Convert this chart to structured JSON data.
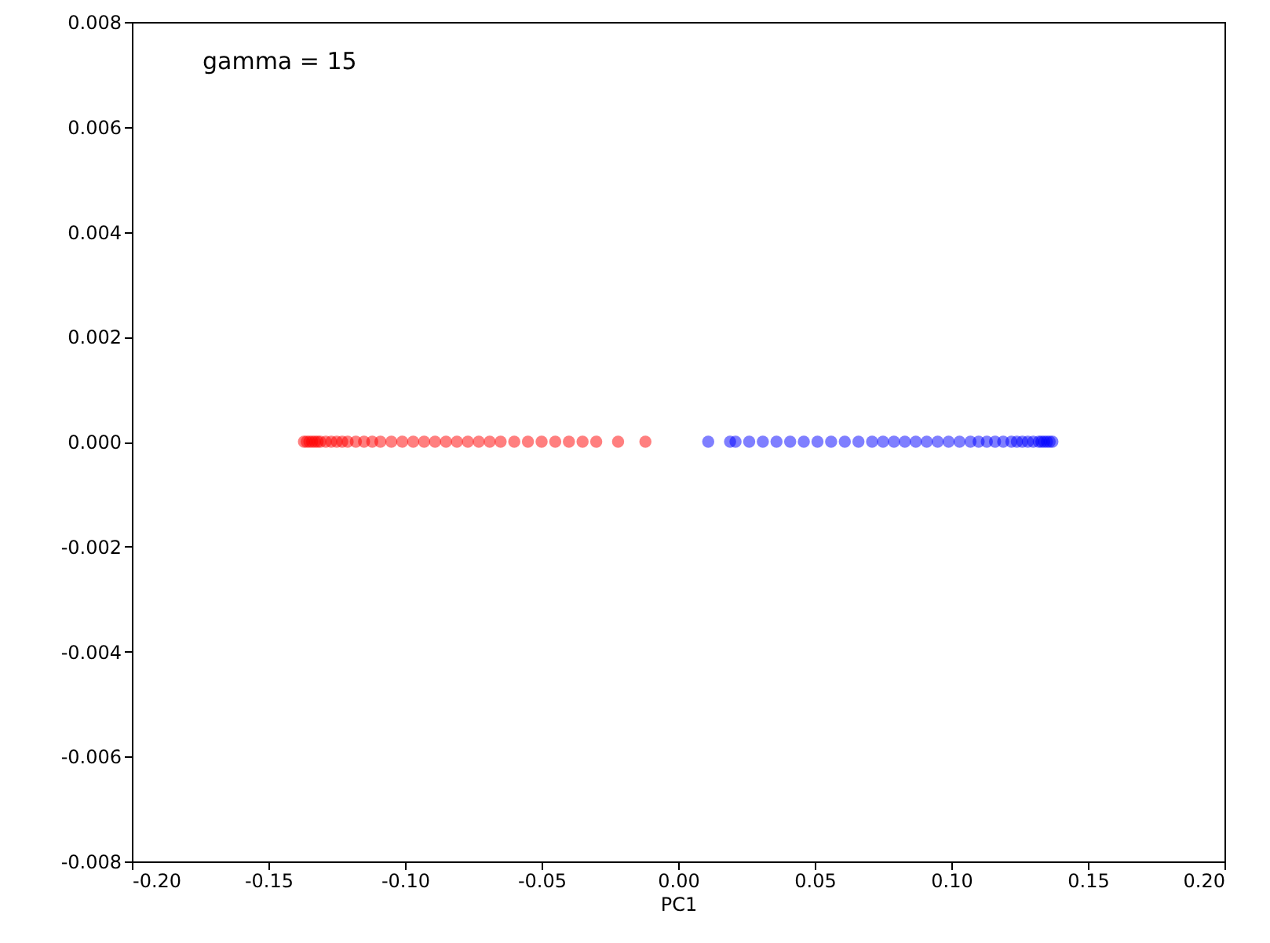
{
  "chart_data": {
    "type": "scatter",
    "xlabel": "PC1",
    "annotations": [
      "gamma = 15"
    ],
    "marker": "circle",
    "grid": false,
    "xlim": [
      -0.2,
      0.2
    ],
    "ylim": [
      -0.008,
      0.008
    ],
    "xticks": [
      {
        "value": -0.2,
        "label": "-0.20"
      },
      {
        "value": -0.15,
        "label": "-0.15"
      },
      {
        "value": -0.1,
        "label": "-0.10"
      },
      {
        "value": -0.05,
        "label": "-0.05"
      },
      {
        "value": 0,
        "label": "0.00"
      },
      {
        "value": 0.05,
        "label": "0.05"
      },
      {
        "value": 0.1,
        "label": "0.10"
      },
      {
        "value": 0.15,
        "label": "0.15"
      },
      {
        "value": 0.2,
        "label": "0.20"
      }
    ],
    "yticks": [
      {
        "value": -0.008,
        "label": "-0.008"
      },
      {
        "value": -0.006,
        "label": "-0.006"
      },
      {
        "value": -0.004,
        "label": "-0.004"
      },
      {
        "value": -0.002,
        "label": "-0.002"
      },
      {
        "value": 0,
        "label": "0.000"
      },
      {
        "value": 0.002,
        "label": "0.002"
      },
      {
        "value": 0.004,
        "label": "0.004"
      },
      {
        "value": 0.006,
        "label": "0.006"
      },
      {
        "value": 0.008,
        "label": "0.008"
      }
    ],
    "series": [
      {
        "color": "#ff0000",
        "x": [
          -0.137,
          -0.136,
          -0.135,
          -0.134,
          -0.133,
          -0.132,
          -0.131,
          -0.129,
          -0.127,
          -0.125,
          -0.123,
          -0.121,
          -0.118,
          -0.115,
          -0.112,
          -0.109,
          -0.105,
          -0.101,
          -0.097,
          -0.093,
          -0.089,
          -0.085,
          -0.081,
          -0.077,
          -0.073,
          -0.069,
          -0.065,
          -0.06,
          -0.055,
          -0.05,
          -0.045,
          -0.04,
          -0.035,
          -0.03,
          -0.022,
          -0.012
        ],
        "values": [
          0,
          0,
          0,
          0,
          0,
          0,
          0,
          0,
          0,
          0,
          0,
          0,
          0,
          0,
          0,
          0,
          0,
          0,
          0,
          0,
          0,
          0,
          0,
          0,
          0,
          0,
          0,
          0,
          0,
          0,
          0,
          0,
          0,
          0,
          0,
          0
        ]
      },
      {
        "color": "#0000ff",
        "x": [
          0.011,
          0.019,
          0.021,
          0.026,
          0.031,
          0.036,
          0.041,
          0.046,
          0.051,
          0.056,
          0.061,
          0.066,
          0.071,
          0.075,
          0.079,
          0.083,
          0.087,
          0.091,
          0.095,
          0.099,
          0.103,
          0.107,
          0.11,
          0.113,
          0.116,
          0.119,
          0.122,
          0.124,
          0.126,
          0.128,
          0.13,
          0.132,
          0.133,
          0.134,
          0.135,
          0.136,
          0.137
        ],
        "values": [
          0,
          0,
          0,
          0,
          0,
          0,
          0,
          0,
          0,
          0,
          0,
          0,
          0,
          0,
          0,
          0,
          0,
          0,
          0,
          0,
          0,
          0,
          0,
          0,
          0,
          0,
          0,
          0,
          0,
          0,
          0,
          0,
          0,
          0,
          0,
          0,
          0
        ]
      }
    ]
  }
}
